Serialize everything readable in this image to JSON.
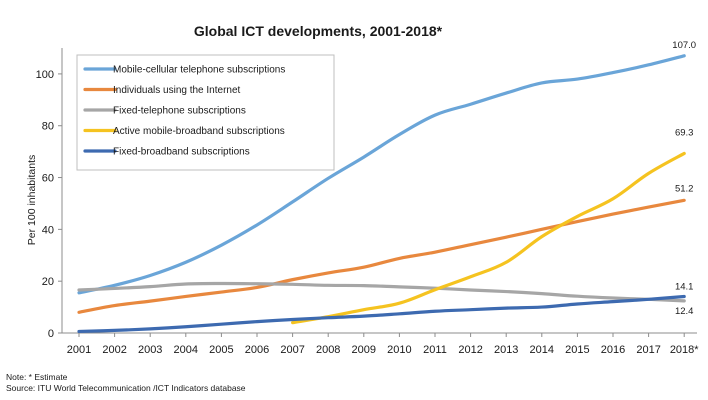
{
  "chart_data": {
    "type": "line",
    "title": "Global ICT developments, 2001-2018*",
    "xlabel": "",
    "ylabel": "Per 100 inhabitants",
    "ylim": [
      0,
      110
    ],
    "yticks": [
      0,
      20,
      40,
      60,
      80,
      100
    ],
    "grid": false,
    "legend_position": "top-left",
    "categories": [
      "2001",
      "2002",
      "2003",
      "2004",
      "2005",
      "2006",
      "2007",
      "2008",
      "2009",
      "2010",
      "2011",
      "2012",
      "2013",
      "2014",
      "2015",
      "2016",
      "2017",
      "2018*"
    ],
    "series": [
      {
        "name": "Mobile-cellular telephone subscriptions",
        "color": "#6aa5d8",
        "end_label": "107.0",
        "values": [
          15.5,
          18.4,
          22.2,
          27.3,
          33.9,
          41.7,
          50.6,
          59.7,
          67.9,
          76.6,
          84.1,
          88.3,
          92.6,
          96.5,
          98.0,
          100.5,
          103.5,
          107.0
        ]
      },
      {
        "name": "Individuals using the Internet",
        "color": "#e8883e",
        "end_label": "51.2",
        "values": [
          8.0,
          10.6,
          12.3,
          14.1,
          15.8,
          17.6,
          20.6,
          23.2,
          25.4,
          28.8,
          31.2,
          34.1,
          37.0,
          40.0,
          43.0,
          45.9,
          48.6,
          51.2
        ]
      },
      {
        "name": "Fixed-telephone subscriptions",
        "color": "#a6a6a6",
        "end_label": "12.4",
        "values": [
          16.6,
          17.2,
          17.9,
          18.9,
          19.1,
          19.0,
          18.8,
          18.4,
          18.3,
          17.8,
          17.3,
          16.6,
          16.0,
          15.2,
          14.2,
          13.5,
          13.0,
          12.4
        ]
      },
      {
        "name": "Active mobile-broadband subscriptions",
        "color": "#f5c320",
        "end_label": "69.3",
        "values": [
          null,
          null,
          null,
          null,
          null,
          null,
          4.0,
          6.3,
          9.0,
          11.5,
          16.7,
          21.7,
          27.3,
          37.2,
          45.0,
          51.8,
          61.6,
          69.3
        ]
      },
      {
        "name": "Fixed-broadband subscriptions",
        "color": "#3d6ab0",
        "end_label": "14.1",
        "values": [
          0.6,
          1.0,
          1.6,
          2.4,
          3.4,
          4.4,
          5.2,
          5.9,
          6.5,
          7.4,
          8.4,
          9.0,
          9.6,
          10.0,
          11.2,
          12.1,
          13.0,
          14.1
        ]
      }
    ]
  },
  "footer": {
    "note": "Note: * Estimate",
    "source": "Source:  ITU World Telecommunication /ICT Indicators database"
  }
}
